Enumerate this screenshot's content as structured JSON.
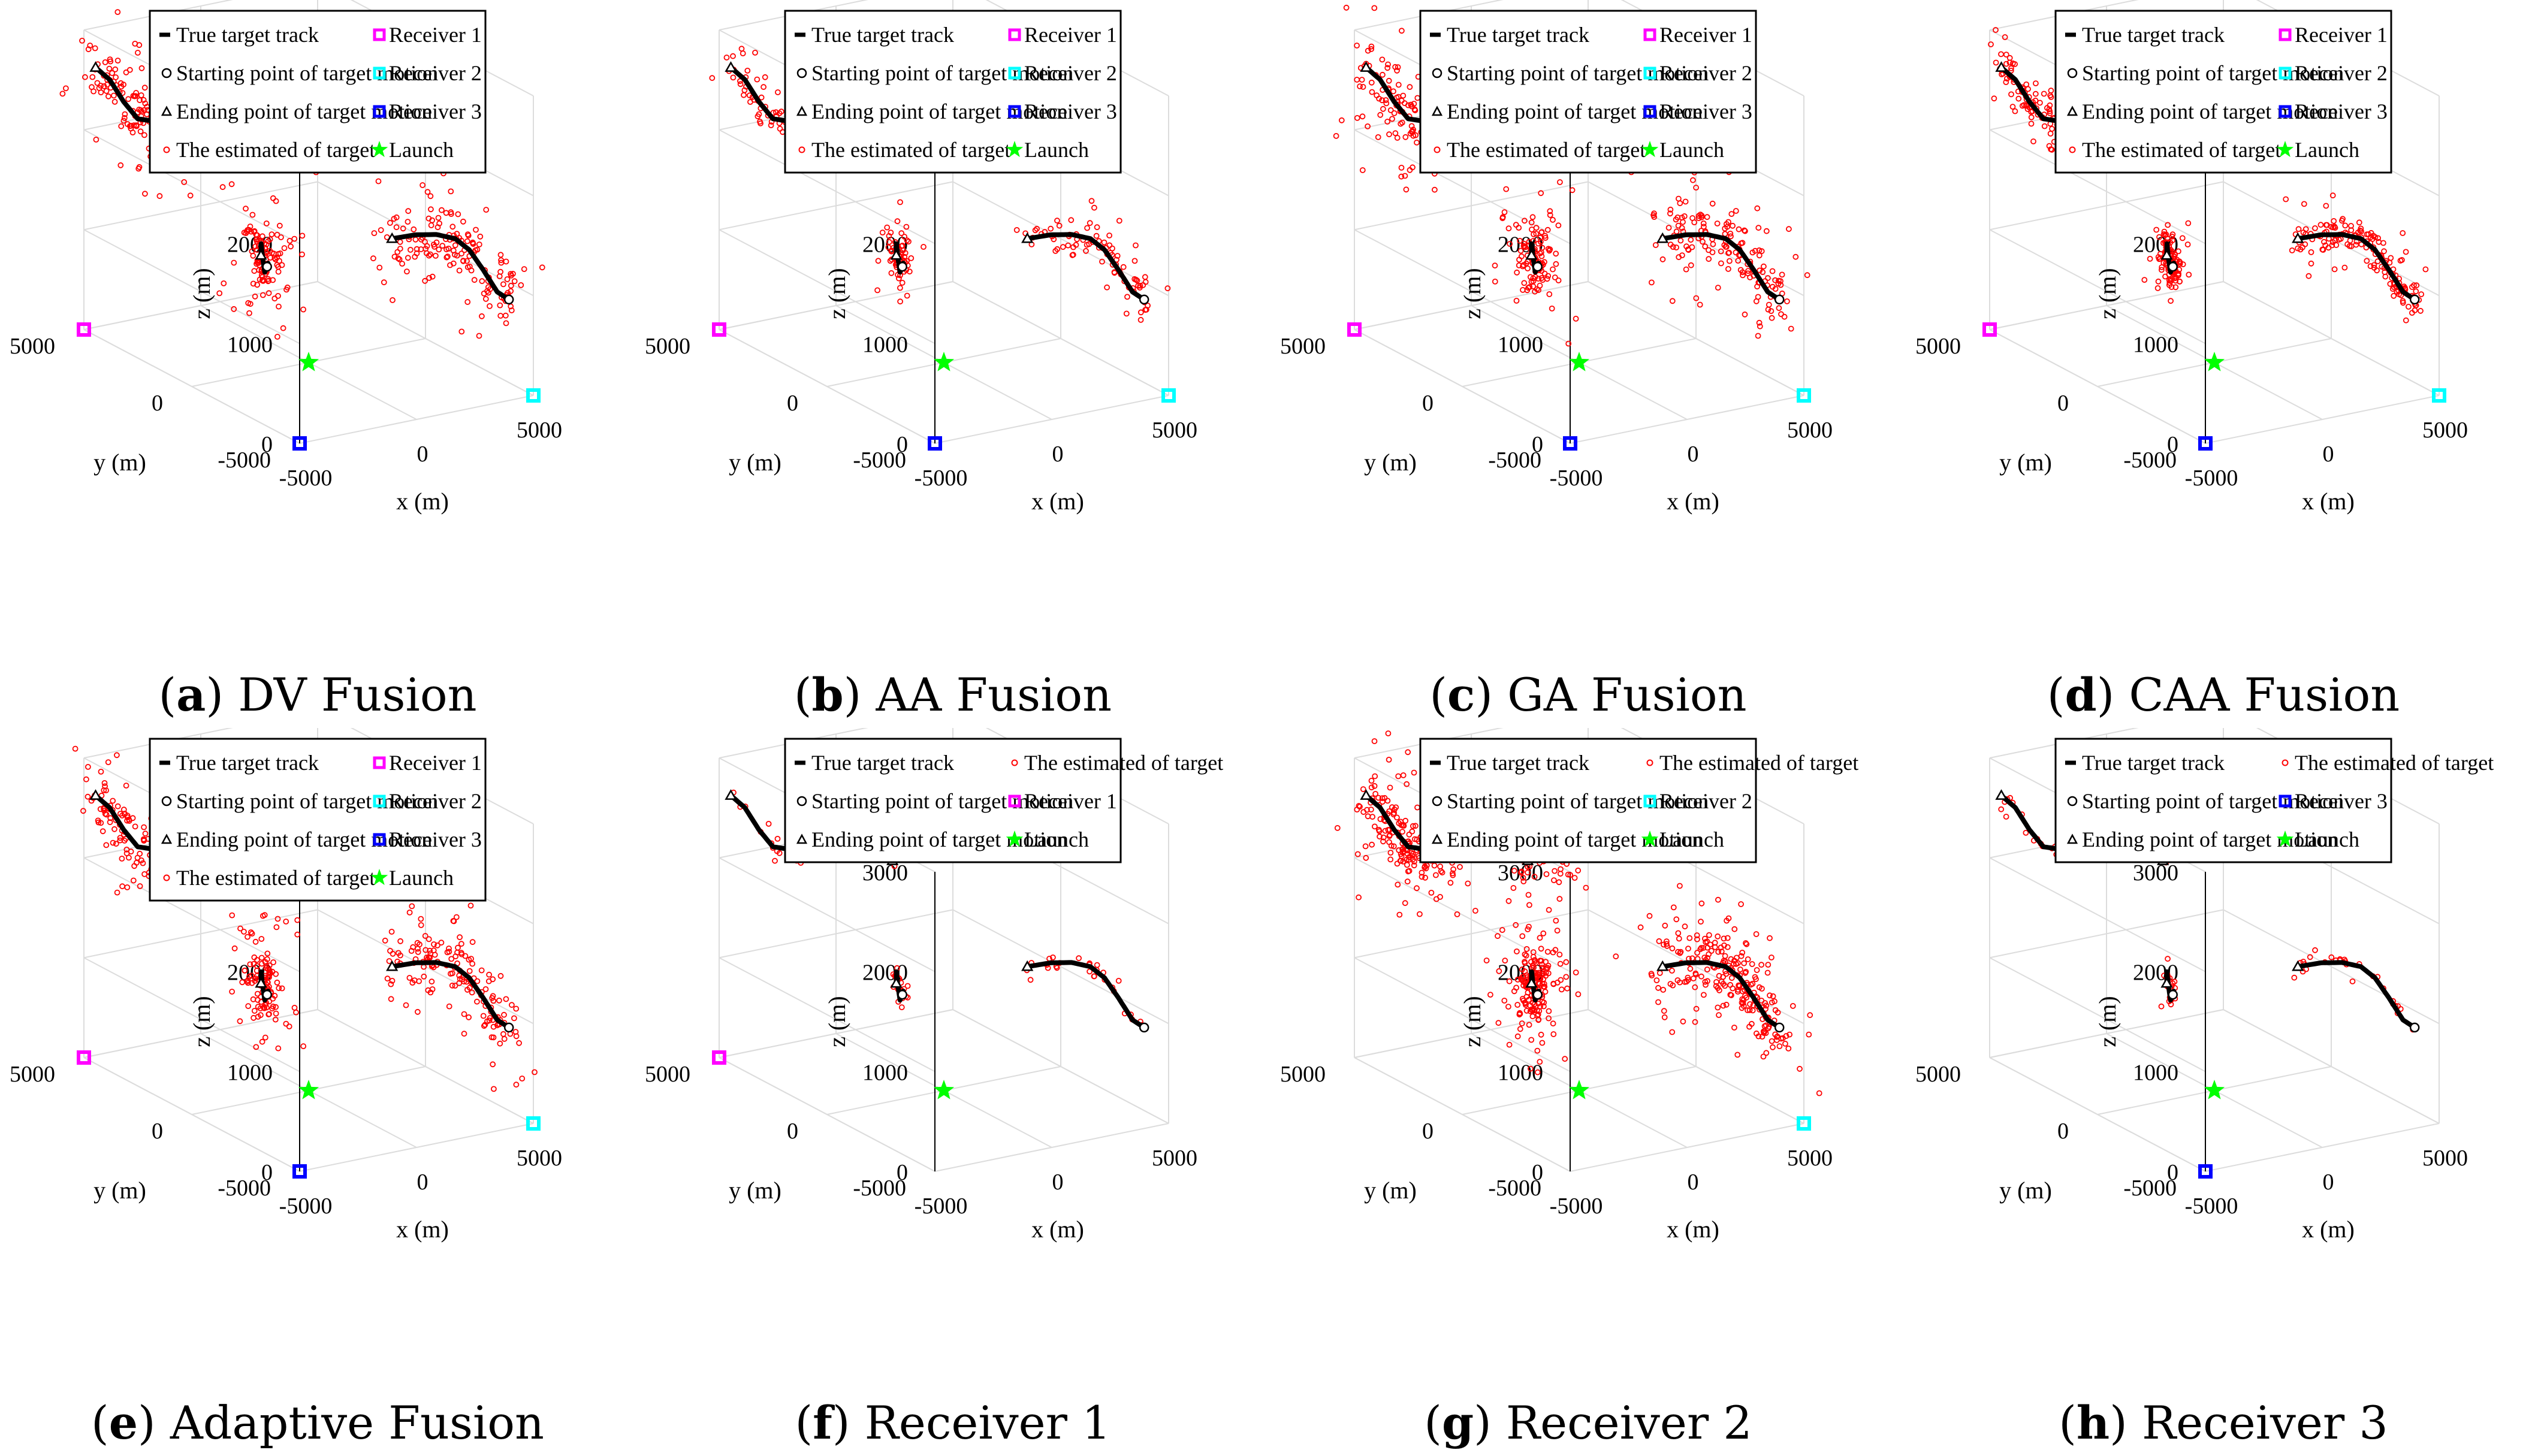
{
  "figure": {
    "panels": [
      {
        "letter": "a",
        "title": "DV Fusion",
        "legend": [
          [
            "track",
            "True target track"
          ],
          [
            "rx1",
            "Receiver 1"
          ],
          [
            "start",
            "Starting point of target motion"
          ],
          [
            "rx2",
            "Receiver 2"
          ],
          [
            "end",
            "Ending point of target motion"
          ],
          [
            "rx3",
            "Receiver 3"
          ],
          [
            "est",
            "The estimated of target"
          ],
          [
            "launch",
            "Launch"
          ]
        ],
        "receivers": [
          1,
          2,
          3
        ],
        "estimate": {
          "spread": "wide",
          "density": "high"
        }
      },
      {
        "letter": "b",
        "title": "AA Fusion",
        "legend": [
          [
            "track",
            "True target track"
          ],
          [
            "rx1",
            "Receiver 1"
          ],
          [
            "start",
            "Starting point of target motion"
          ],
          [
            "rx2",
            "Receiver 2"
          ],
          [
            "end",
            "Ending point of target motion"
          ],
          [
            "rx3",
            "Receiver 3"
          ],
          [
            "est",
            "The estimated of target"
          ],
          [
            "launch",
            "Launch"
          ]
        ],
        "receivers": [
          1,
          2,
          3
        ],
        "estimate": {
          "spread": "medium",
          "density": "medium"
        }
      },
      {
        "letter": "c",
        "title": "GA Fusion",
        "legend": [
          [
            "track",
            "True target track"
          ],
          [
            "rx1",
            "Receiver 1"
          ],
          [
            "start",
            "Starting point of target motion"
          ],
          [
            "rx2",
            "Receiver 2"
          ],
          [
            "end",
            "Ending point of target motion"
          ],
          [
            "rx3",
            "Receiver 3"
          ],
          [
            "est",
            "The estimated of target"
          ],
          [
            "launch",
            "Launch"
          ]
        ],
        "receivers": [
          1,
          2,
          3
        ],
        "estimate": {
          "spread": "wide",
          "density": "high"
        }
      },
      {
        "letter": "d",
        "title": "CAA Fusion",
        "legend": [
          [
            "track",
            "True target track"
          ],
          [
            "rx1",
            "Receiver 1"
          ],
          [
            "start",
            "Starting point of target motion"
          ],
          [
            "rx2",
            "Receiver 2"
          ],
          [
            "end",
            "Ending point of target motion"
          ],
          [
            "rx3",
            "Receiver 3"
          ],
          [
            "est",
            "The estimated of target"
          ],
          [
            "launch",
            "Launch"
          ]
        ],
        "receivers": [
          1,
          2,
          3
        ],
        "estimate": {
          "spread": "medium",
          "density": "high"
        }
      },
      {
        "letter": "e",
        "title": "Adaptive Fusion",
        "legend": [
          [
            "track",
            "True target track"
          ],
          [
            "rx1",
            "Receiver 1"
          ],
          [
            "start",
            "Starting point of target motion"
          ],
          [
            "rx2",
            "Receiver 2"
          ],
          [
            "end",
            "Ending point of target motion"
          ],
          [
            "rx3",
            "Receiver 3"
          ],
          [
            "est",
            "The estimated of target"
          ],
          [
            "launch",
            "Launch"
          ]
        ],
        "receivers": [
          1,
          2,
          3
        ],
        "estimate": {
          "spread": "wide",
          "density": "high"
        }
      },
      {
        "letter": "f",
        "title": "Receiver 1",
        "legend": [
          [
            "track",
            "True target track"
          ],
          [
            "est",
            "The estimated of target"
          ],
          [
            "start",
            "Starting point of target motion"
          ],
          [
            "rx1",
            "Receiver 1"
          ],
          [
            "end",
            "Ending point of target motion"
          ],
          [
            "launch",
            "Launch"
          ]
        ],
        "receivers": [
          1
        ],
        "estimate": {
          "spread": "small",
          "density": "low"
        }
      },
      {
        "letter": "g",
        "title": "Receiver 2",
        "legend": [
          [
            "track",
            "True target track"
          ],
          [
            "est",
            "The estimated of target"
          ],
          [
            "start",
            "Starting point of target motion"
          ],
          [
            "rx2",
            "Receiver 2"
          ],
          [
            "end",
            "Ending point of target motion"
          ],
          [
            "launch",
            "Launch"
          ]
        ],
        "receivers": [
          2
        ],
        "estimate": {
          "spread": "wide",
          "density": "very-high"
        }
      },
      {
        "letter": "h",
        "title": "Receiver 3",
        "legend": [
          [
            "track",
            "True target track"
          ],
          [
            "est",
            "The estimated of target"
          ],
          [
            "start",
            "Starting point of target motion"
          ],
          [
            "rx3",
            "Receiver 3"
          ],
          [
            "end",
            "Ending point of target motion"
          ],
          [
            "launch",
            "Launch"
          ]
        ],
        "receivers": [
          3
        ],
        "estimate": {
          "spread": "small",
          "density": "low"
        }
      }
    ]
  },
  "chart_data": {
    "type": "scatter",
    "projection": "3d",
    "xlabel": "x (m)",
    "ylabel": "y (m)",
    "zlabel": "z (m)",
    "xlim": [
      -5000,
      5000
    ],
    "ylim": [
      -5000,
      5000
    ],
    "zlim": [
      0,
      3000
    ],
    "x_ticks": [
      "-5000",
      "0",
      "5000"
    ],
    "y_ticks": [
      "-5000",
      "0",
      "5000"
    ],
    "z_ticks": [
      "0",
      "1000",
      "2000",
      "3000"
    ],
    "grid": true,
    "legend_position": "top",
    "colors": {
      "track": "#000000",
      "estimate": "#ff0000",
      "receiver_1": "#ff00ff",
      "receiver_2": "#00ffff",
      "receiver_3": "#0000ff",
      "launch": "#00ff00"
    },
    "receivers": {
      "receiver_1": {
        "x": -5000,
        "y": 5000,
        "z": 0
      },
      "receiver_2": {
        "x": 5000,
        "y": -5000,
        "z": 0
      },
      "receiver_3": {
        "x": -5000,
        "y": -5000,
        "z": 0
      }
    },
    "launch": {
      "x": 0,
      "y": 0,
      "z": 0
    },
    "tracks": [
      {
        "points": [
          [
            -4500,
            5000,
            2600
          ],
          [
            -3900,
            5000,
            2450
          ],
          [
            -3300,
            5000,
            2200
          ],
          [
            -2700,
            5000,
            2000
          ],
          [
            -2100,
            5000,
            1950
          ],
          [
            -1500,
            5000,
            1900
          ],
          [
            -800,
            5000,
            1880
          ]
        ]
      },
      {
        "points": [
          [
            -2500,
            -500,
            1250
          ],
          [
            -2400,
            -400,
            1350
          ],
          [
            -2250,
            -300,
            1200
          ],
          [
            -2200,
            -350,
            1050
          ],
          [
            -2150,
            -450,
            1150
          ],
          [
            -2100,
            -350,
            1100
          ]
        ]
      },
      {
        "points": [
          [
            -1000,
            1300,
            2200
          ],
          [
            -500,
            1500,
            2350
          ],
          [
            0,
            1700,
            2450
          ],
          [
            300,
            1850,
            2500
          ],
          [
            450,
            2000,
            2350
          ],
          [
            600,
            2100,
            2100
          ]
        ]
      },
      {
        "points": [
          [
            -400,
            -4300,
            1750
          ],
          [
            600,
            -4300,
            1740
          ],
          [
            1500,
            -4300,
            1700
          ],
          [
            2300,
            -4300,
            1620
          ],
          [
            2900,
            -4300,
            1480
          ],
          [
            3500,
            -4300,
            1250
          ],
          [
            4100,
            -4300,
            1000
          ],
          [
            4600,
            -4300,
            900
          ]
        ]
      }
    ]
  }
}
